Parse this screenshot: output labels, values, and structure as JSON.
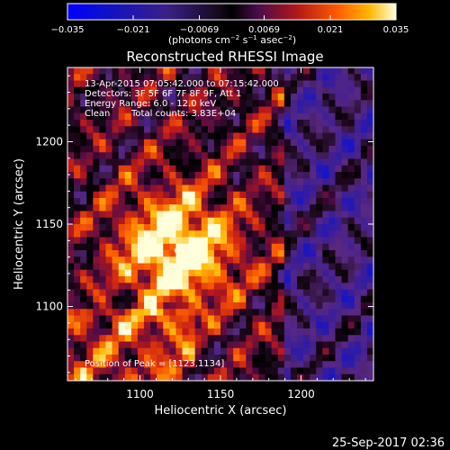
{
  "colorbar": {
    "ticks": [
      "−0.035",
      "−0.021",
      "−0.0069",
      "0.0069",
      "0.021",
      "0.035"
    ],
    "units_main": "(photons cm",
    "units_exp1": "−2",
    "units_mid1": " s",
    "units_exp2": "−1",
    "units_mid2": " asec",
    "units_exp3": "−2",
    "units_close": ")",
    "range": [
      -0.035,
      0.035
    ]
  },
  "chart_data": {
    "type": "heatmap",
    "title": "Reconstructed RHESSI Image",
    "xlabel": "Heliocentric X (arcsec)",
    "ylabel": "Heliocentric Y (arcsec)",
    "xlim": [
      1055,
      1245
    ],
    "ylim": [
      1055,
      1245
    ],
    "x_ticks": [
      1100,
      1150,
      1200
    ],
    "y_ticks": [
      1100,
      1150,
      1200
    ],
    "peak": {
      "x": 1123,
      "y": 1134
    },
    "annotations": {
      "time": "13-Apr-2015 07:05:42.000 to 07:15:42.000",
      "detectors": "Detectors: 3F 5F 6F 7F 8F 9F, Att 1",
      "energy": "Energy Range: 6.0 - 12.0 keV",
      "method": "Clean",
      "counts": "Total counts: 3.83E+04",
      "peak_label": "Position of Peak = [1123,1134]"
    }
  },
  "footer": {
    "timestamp": "25-Sep-2017 02:36"
  }
}
